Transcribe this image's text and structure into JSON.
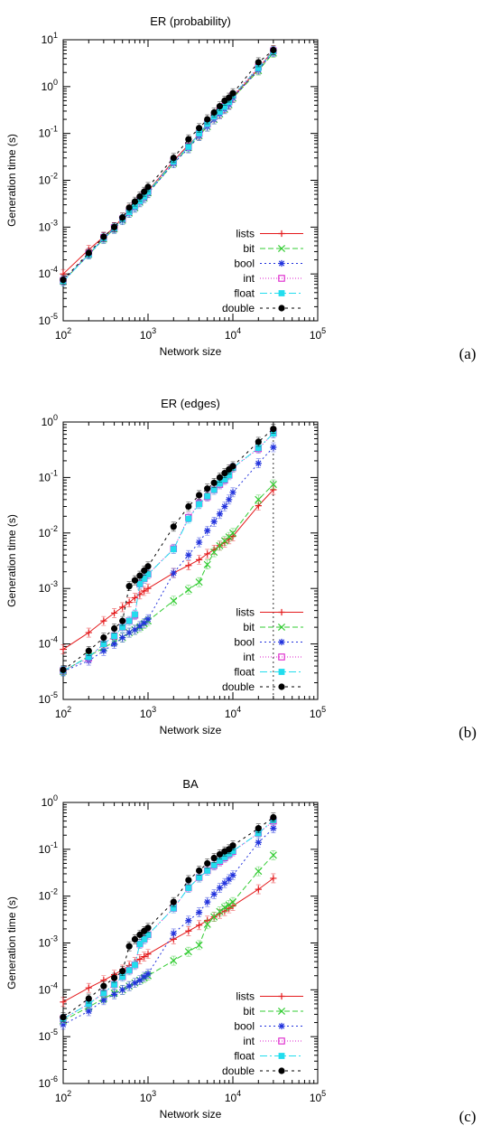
{
  "chart_data": [
    {
      "type": "line",
      "title": "ER (probability)",
      "xlabel": "Network size",
      "ylabel": "Generation time (s)",
      "x_scale": "log",
      "y_scale": "log",
      "xlim": [
        100,
        100000
      ],
      "ylim": [
        1e-05,
        10
      ],
      "x_ticks": [
        {
          "base": "10",
          "exp": "2"
        },
        {
          "base": "10",
          "exp": "3"
        },
        {
          "base": "10",
          "exp": "4"
        },
        {
          "base": "10",
          "exp": "5"
        }
      ],
      "y_ticks": [
        {
          "base": "10",
          "exp": "-5"
        },
        {
          "base": "10",
          "exp": "-4"
        },
        {
          "base": "10",
          "exp": "-3"
        },
        {
          "base": "10",
          "exp": "-2"
        },
        {
          "base": "10",
          "exp": "-1"
        },
        {
          "base": "10",
          "exp": "0"
        },
        {
          "base": "10",
          "exp": "1"
        }
      ],
      "legend_position": "bottom-right",
      "panel_label": "(a)",
      "x": [
        100,
        200,
        300,
        400,
        500,
        600,
        700,
        800,
        900,
        1000,
        2000,
        3000,
        4000,
        5000,
        6000,
        7000,
        8000,
        9000,
        10000,
        20000,
        30000
      ],
      "series": [
        {
          "name": "lists",
          "color": "#e41a1c",
          "marker": "plus",
          "dash": "",
          "values": [
            0.0001,
            0.00033,
            0.00062,
            0.001,
            0.0016,
            0.0024,
            0.003,
            0.004,
            0.0046,
            0.0059,
            0.026,
            0.057,
            0.094,
            0.16,
            0.22,
            0.27,
            0.35,
            0.42,
            0.6,
            2.4,
            6.0
          ]
        },
        {
          "name": "bit",
          "color": "#33cc33",
          "marker": "x",
          "dash": "6,3",
          "values": [
            7e-05,
            0.00026,
            0.00056,
            0.00092,
            0.0014,
            0.002,
            0.0026,
            0.0034,
            0.0042,
            0.0054,
            0.023,
            0.05,
            0.09,
            0.14,
            0.2,
            0.26,
            0.33,
            0.41,
            0.57,
            2.2,
            5.2
          ]
        },
        {
          "name": "bool",
          "color": "#2233dd",
          "marker": "star",
          "dash": "2,3",
          "values": [
            7e-05,
            0.00026,
            0.00056,
            0.00092,
            0.0014,
            0.002,
            0.0026,
            0.0034,
            0.0042,
            0.0053,
            0.023,
            0.048,
            0.088,
            0.14,
            0.2,
            0.26,
            0.33,
            0.41,
            0.57,
            2.3,
            5.5
          ]
        },
        {
          "name": "int",
          "color": "#dd22cc",
          "marker": "square-open",
          "dash": "1,2",
          "values": [
            7.2e-05,
            0.00027,
            0.0006,
            0.00098,
            0.0015,
            0.0022,
            0.0029,
            0.0037,
            0.0046,
            0.0058,
            0.025,
            0.053,
            0.1,
            0.16,
            0.23,
            0.3,
            0.38,
            0.48,
            0.65,
            2.6,
            5.8
          ]
        },
        {
          "name": "float",
          "color": "#22ddee",
          "marker": "square",
          "dash": "8,3,2,3",
          "values": [
            7e-05,
            0.00026,
            0.00058,
            0.00096,
            0.0015,
            0.0021,
            0.0028,
            0.0036,
            0.0045,
            0.0057,
            0.025,
            0.052,
            0.1,
            0.16,
            0.23,
            0.29,
            0.37,
            0.47,
            0.64,
            2.5,
            5.7
          ]
        },
        {
          "name": "double",
          "color": "#000000",
          "marker": "circle",
          "dash": "3,4",
          "values": [
            7.5e-05,
            0.00028,
            0.00062,
            0.001,
            0.0016,
            0.0026,
            0.0035,
            0.0045,
            0.0057,
            0.0072,
            0.03,
            0.075,
            0.13,
            0.2,
            0.28,
            0.38,
            0.5,
            0.58,
            0.72,
            3.3,
            6.0
          ]
        }
      ]
    },
    {
      "type": "line",
      "title": "ER (edges)",
      "xlabel": "Network size",
      "ylabel": "Generation time (s)",
      "x_scale": "log",
      "y_scale": "log",
      "xlim": [
        100,
        100000
      ],
      "ylim": [
        1e-05,
        1
      ],
      "x_ticks": [
        {
          "base": "10",
          "exp": "2"
        },
        {
          "base": "10",
          "exp": "3"
        },
        {
          "base": "10",
          "exp": "4"
        },
        {
          "base": "10",
          "exp": "5"
        }
      ],
      "y_ticks": [
        {
          "base": "10",
          "exp": "-5"
        },
        {
          "base": "10",
          "exp": "-4"
        },
        {
          "base": "10",
          "exp": "-3"
        },
        {
          "base": "10",
          "exp": "-2"
        },
        {
          "base": "10",
          "exp": "-1"
        },
        {
          "base": "10",
          "exp": "0"
        }
      ],
      "legend_position": "bottom-right",
      "panel_label": "(b)",
      "x": [
        100,
        200,
        300,
        400,
        500,
        600,
        700,
        800,
        900,
        1000,
        2000,
        3000,
        4000,
        5000,
        6000,
        7000,
        8000,
        9000,
        10000,
        20000,
        30000
      ],
      "series": [
        {
          "name": "lists",
          "color": "#e41a1c",
          "marker": "plus",
          "dash": "",
          "values": [
            8e-05,
            0.00016,
            0.00026,
            0.00036,
            0.00046,
            0.00056,
            0.00068,
            0.00078,
            0.0009,
            0.001,
            0.0019,
            0.0026,
            0.0033,
            0.0042,
            0.005,
            0.0059,
            0.0067,
            0.0077,
            0.0087,
            0.031,
            0.06
          ]
        },
        {
          "name": "bit",
          "color": "#33cc33",
          "marker": "x",
          "dash": "6,3",
          "values": [
            3.2e-05,
            6e-05,
            8.5e-05,
            0.00011,
            0.00013,
            0.00016,
            0.00018,
            0.0002,
            0.00023,
            0.00026,
            0.0006,
            0.00095,
            0.0013,
            0.0027,
            0.0045,
            0.0059,
            0.0072,
            0.0085,
            0.01,
            0.04,
            0.075
          ]
        },
        {
          "name": "bool",
          "color": "#2233dd",
          "marker": "star",
          "dash": "2,3",
          "values": [
            3.2e-05,
            5e-05,
            7.5e-05,
            0.0001,
            0.00013,
            0.00016,
            0.00018,
            0.00021,
            0.00024,
            0.00028,
            0.0019,
            0.004,
            0.0068,
            0.011,
            0.016,
            0.022,
            0.03,
            0.04,
            0.054,
            0.18,
            0.35
          ]
        },
        {
          "name": "int",
          "color": "#dd22cc",
          "marker": "square-open",
          "dash": "1,2",
          "values": [
            3.3e-05,
            5.6e-05,
            0.0001,
            0.00014,
            0.0002,
            0.00026,
            0.00033,
            0.0012,
            0.0015,
            0.0018,
            0.0052,
            0.019,
            0.034,
            0.045,
            0.06,
            0.075,
            0.09,
            0.11,
            0.15,
            0.33,
            0.63
          ]
        },
        {
          "name": "float",
          "color": "#22ddee",
          "marker": "square",
          "dash": "8,3,2,3",
          "values": [
            3.3e-05,
            5.8e-05,
            0.0001,
            0.00014,
            0.0002,
            0.00026,
            0.00034,
            0.0012,
            0.0015,
            0.0018,
            0.0051,
            0.018,
            0.033,
            0.046,
            0.06,
            0.078,
            0.092,
            0.11,
            0.15,
            0.34,
            0.62
          ]
        },
        {
          "name": "double",
          "color": "#000000",
          "marker": "circle",
          "dash": "3,4",
          "values": [
            3.4e-05,
            7.5e-05,
            0.00013,
            0.00019,
            0.00026,
            0.0011,
            0.0014,
            0.0017,
            0.0021,
            0.0025,
            0.013,
            0.03,
            0.048,
            0.063,
            0.08,
            0.1,
            0.12,
            0.14,
            0.16,
            0.44,
            0.75
          ]
        }
      ]
    },
    {
      "type": "line",
      "title": "BA",
      "xlabel": "Network size",
      "ylabel": "Generation time (s)",
      "x_scale": "log",
      "y_scale": "log",
      "xlim": [
        100,
        100000
      ],
      "ylim": [
        1e-06,
        1
      ],
      "x_ticks": [
        {
          "base": "10",
          "exp": "2"
        },
        {
          "base": "10",
          "exp": "3"
        },
        {
          "base": "10",
          "exp": "4"
        },
        {
          "base": "10",
          "exp": "5"
        }
      ],
      "y_ticks": [
        {
          "base": "10",
          "exp": "-6"
        },
        {
          "base": "10",
          "exp": "-5"
        },
        {
          "base": "10",
          "exp": "-4"
        },
        {
          "base": "10",
          "exp": "-3"
        },
        {
          "base": "10",
          "exp": "-2"
        },
        {
          "base": "10",
          "exp": "-1"
        },
        {
          "base": "10",
          "exp": "0"
        }
      ],
      "legend_position": "bottom-right",
      "panel_label": "(c)",
      "x": [
        100,
        200,
        300,
        400,
        500,
        600,
        700,
        800,
        900,
        1000,
        2000,
        3000,
        4000,
        5000,
        6000,
        7000,
        8000,
        9000,
        10000,
        20000,
        30000
      ],
      "series": [
        {
          "name": "lists",
          "color": "#e41a1c",
          "marker": "plus",
          "dash": "",
          "values": [
            5.5e-05,
            0.00011,
            0.00016,
            0.00021,
            0.00027,
            0.00033,
            0.00039,
            0.00045,
            0.00051,
            0.00058,
            0.0012,
            0.0018,
            0.0024,
            0.003,
            0.0036,
            0.0042,
            0.0048,
            0.0055,
            0.0062,
            0.014,
            0.024
          ]
        },
        {
          "name": "bit",
          "color": "#33cc33",
          "marker": "x",
          "dash": "6,3",
          "values": [
            2.2e-05,
            4.3e-05,
            6.5e-05,
            8.5e-05,
            0.0001,
            0.00012,
            0.00014,
            0.00016,
            0.00018,
            0.0002,
            0.00042,
            0.00065,
            0.0009,
            0.0025,
            0.0036,
            0.0047,
            0.0057,
            0.0065,
            0.0075,
            0.034,
            0.075
          ]
        },
        {
          "name": "bool",
          "color": "#2233dd",
          "marker": "star",
          "dash": "2,3",
          "values": [
            1.8e-05,
            3.5e-05,
            6e-05,
            8e-05,
            0.0001,
            0.00012,
            0.00014,
            0.00016,
            0.00019,
            0.00022,
            0.0016,
            0.003,
            0.0045,
            0.0075,
            0.011,
            0.015,
            0.019,
            0.023,
            0.028,
            0.14,
            0.28
          ]
        },
        {
          "name": "int",
          "color": "#dd22cc",
          "marker": "square-open",
          "dash": "1,2",
          "values": [
            2.4e-05,
            5e-05,
            8.5e-05,
            0.00013,
            0.00019,
            0.00026,
            0.00034,
            0.00095,
            0.0012,
            0.0015,
            0.0055,
            0.015,
            0.025,
            0.035,
            0.045,
            0.055,
            0.066,
            0.078,
            0.09,
            0.22,
            0.4
          ]
        },
        {
          "name": "float",
          "color": "#22ddee",
          "marker": "square",
          "dash": "8,3,2,3",
          "values": [
            2.4e-05,
            5e-05,
            8.5e-05,
            0.00013,
            0.00019,
            0.00026,
            0.00034,
            0.00095,
            0.0012,
            0.0015,
            0.0055,
            0.015,
            0.025,
            0.035,
            0.046,
            0.057,
            0.068,
            0.08,
            0.092,
            0.22,
            0.42
          ]
        },
        {
          "name": "double",
          "color": "#000000",
          "marker": "circle",
          "dash": "3,4",
          "values": [
            2.6e-05,
            6.5e-05,
            0.00012,
            0.00018,
            0.00025,
            0.00085,
            0.0012,
            0.0015,
            0.0018,
            0.0021,
            0.0075,
            0.022,
            0.035,
            0.05,
            0.065,
            0.078,
            0.09,
            0.1,
            0.12,
            0.28,
            0.48
          ]
        }
      ]
    }
  ]
}
